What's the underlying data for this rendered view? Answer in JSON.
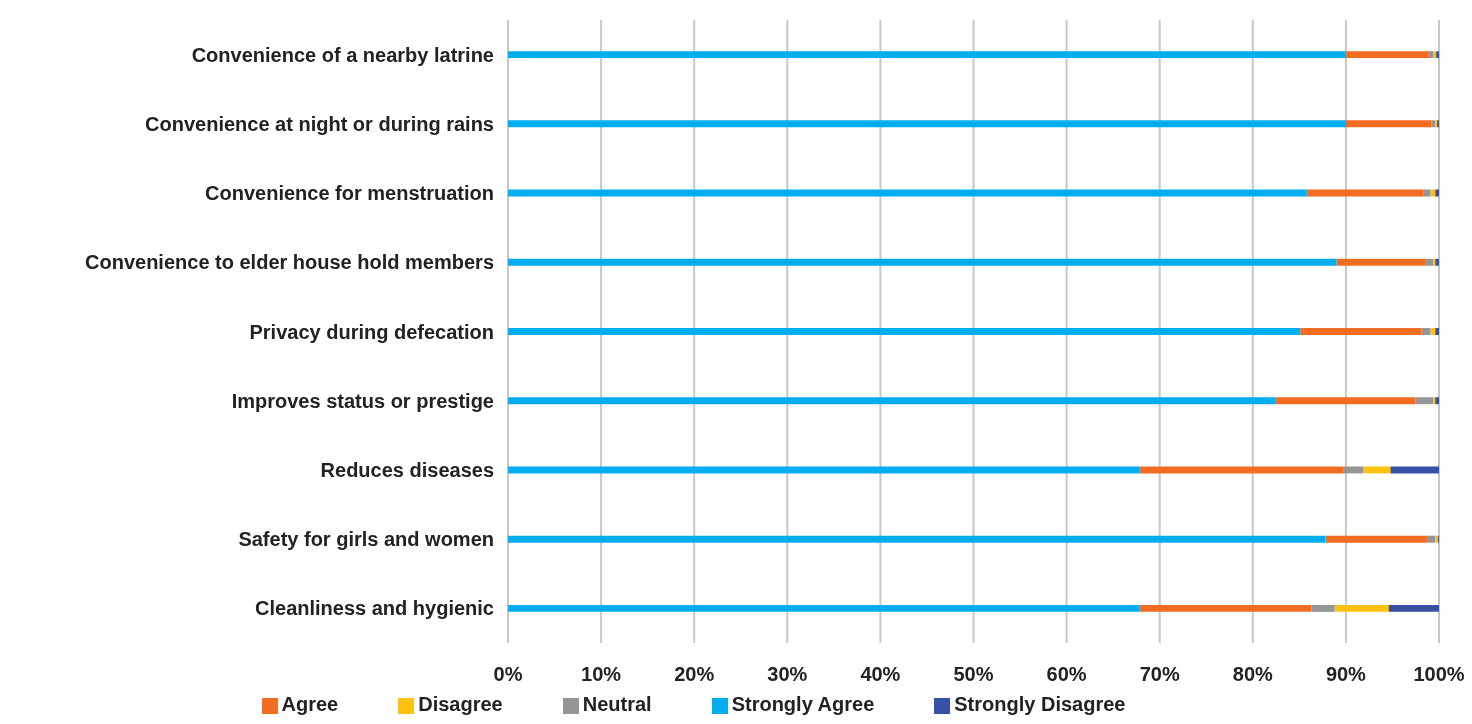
{
  "chart_data": {
    "type": "bar",
    "orientation": "horizontal",
    "stacked": true,
    "categories": [
      "Convenience of a nearby latrine",
      "Convenience at night or during rains",
      "Convenience for menstruation",
      "Convenience to elder house hold members",
      "Privacy during defecation",
      "Improves status or prestige",
      "Reduces diseases",
      "Safety for girls and women",
      "Cleanliness and hygienic"
    ],
    "series": [
      {
        "name": "Strongly Agree",
        "color": "#00adee",
        "values": [
          89.9,
          90.0,
          85.8,
          89.0,
          85.1,
          82.4,
          67.8,
          87.8,
          67.8
        ]
      },
      {
        "name": "Agree",
        "color": "#f26c21",
        "values": [
          9.0,
          9.2,
          12.5,
          9.5,
          13.0,
          15.1,
          21.9,
          10.9,
          18.5
        ]
      },
      {
        "name": "Neutral",
        "color": "#959595",
        "values": [
          0.5,
          0.4,
          0.8,
          0.9,
          1.0,
          1.9,
          2.2,
          0.9,
          2.5
        ]
      },
      {
        "name": "Disagree",
        "color": "#fec110",
        "values": [
          0.3,
          0.2,
          0.5,
          0.2,
          0.5,
          0.2,
          2.9,
          0.3,
          5.8
        ]
      },
      {
        "name": "Strongly Disagree",
        "color": "#3650a5",
        "values": [
          0.3,
          0.2,
          0.4,
          0.4,
          0.4,
          0.4,
          5.2,
          0.1,
          5.4
        ]
      }
    ],
    "xlim": [
      0,
      100
    ],
    "xticks": [
      {
        "value": 0,
        "label": "0%"
      },
      {
        "value": 10,
        "label": "10%"
      },
      {
        "value": 20,
        "label": "20%"
      },
      {
        "value": 30,
        "label": "30%"
      },
      {
        "value": 40,
        "label": "40%"
      },
      {
        "value": 50,
        "label": "50%"
      },
      {
        "value": 60,
        "label": "60%"
      },
      {
        "value": 70,
        "label": "70%"
      },
      {
        "value": 80,
        "label": "80%"
      },
      {
        "value": 90,
        "label": "90%"
      },
      {
        "value": 100,
        "label": "100%"
      }
    ],
    "grid": "x",
    "legend": "bottom"
  }
}
